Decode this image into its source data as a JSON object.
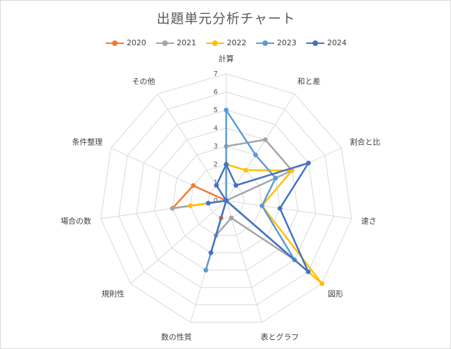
{
  "chart_data": {
    "type": "radar",
    "title": "出題単元分析チャート",
    "categories": [
      "計算",
      "和と差",
      "割合と比",
      "速さ",
      "図形",
      "表とグラフ",
      "数の性質",
      "規則性",
      "場合の数",
      "条件整理",
      "その他"
    ],
    "rlim": [
      0,
      7
    ],
    "ticks": [
      0,
      1,
      2,
      3,
      4,
      5,
      6,
      7
    ],
    "grid": true,
    "legend_position": "top",
    "series": [
      {
        "name": "2020",
        "color": "#ED7D31",
        "values": [
          0,
          0,
          0,
          0,
          0,
          0,
          1,
          0,
          3,
          2,
          0
        ]
      },
      {
        "name": "2021",
        "color": "#A5A5A5",
        "values": [
          3,
          4,
          4,
          0,
          5,
          1,
          2,
          0,
          3,
          0,
          0
        ]
      },
      {
        "name": "2022",
        "color": "#FFC000",
        "values": [
          2,
          2,
          4,
          2,
          7,
          0,
          0,
          0,
          2,
          0,
          0
        ]
      },
      {
        "name": "2023",
        "color": "#5B9BD5",
        "values": [
          5,
          3,
          3,
          2,
          5,
          0,
          4,
          0,
          0,
          0,
          0
        ]
      },
      {
        "name": "2024",
        "color": "#4472C4",
        "values": [
          2,
          1,
          5,
          3,
          6,
          0,
          3,
          0,
          1,
          0,
          1
        ]
      }
    ]
  }
}
